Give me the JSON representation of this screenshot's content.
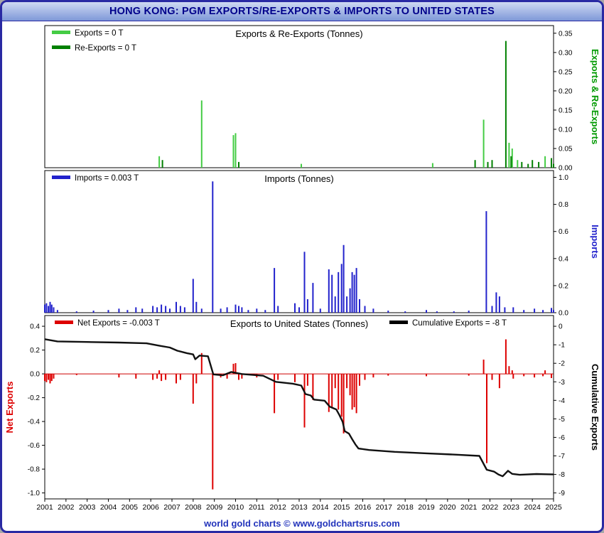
{
  "window": {
    "title": "HONG KONG: PGM EXPORTS/RE-EXPORTS & IMPORTS TO UNITED STATES"
  },
  "footer": {
    "text": "world gold charts © www.goldchartsrus.com"
  },
  "colors": {
    "window_border": "#2929a3",
    "title_text": "#00008b",
    "footer_text": "#2233bb",
    "exports": "#44cc44",
    "re_exports": "#008000",
    "imports": "#2222cc",
    "net_exports": "#dd0000",
    "cumulative": "#111111"
  },
  "x_axis": {
    "min": 2001,
    "max": 2025,
    "tick_labels": [
      "2001",
      "2002",
      "2003",
      "2004",
      "2005",
      "2006",
      "2007",
      "2008",
      "2009",
      "2010",
      "2011",
      "2012",
      "2013",
      "2014",
      "2015",
      "2016",
      "2017",
      "2018",
      "2019",
      "2020",
      "2021",
      "2022",
      "2023",
      "2024",
      "2025"
    ]
  },
  "chart_data": [
    {
      "id": "exports_reexports",
      "type": "bar",
      "title": "Exports & Re-Exports (Tonnes)",
      "axis_label": "Exports & Re-Exports",
      "axis_label_color": "#009900",
      "scale": {
        "min": 0,
        "max": 0.37
      },
      "ticks": [
        [
          0,
          "0.00"
        ],
        [
          0.05,
          "0.05"
        ],
        [
          0.1,
          "0.10"
        ],
        [
          0.15,
          "0.15"
        ],
        [
          0.2,
          "0.20"
        ],
        [
          0.25,
          "0.25"
        ],
        [
          0.3,
          "0.30"
        ],
        [
          0.35,
          "0.35"
        ]
      ],
      "legend": [
        {
          "label": "Exports = 0 T",
          "color": "#44cc44"
        },
        {
          "label": "Re-Exports = 0 T",
          "color": "#008000"
        }
      ],
      "series": [
        {
          "name": "Exports",
          "type": "bar",
          "color": "#44cc44",
          "points": [
            [
              2006.4,
              0.03
            ],
            [
              2008.4,
              0.175
            ],
            [
              2009.9,
              0.085
            ],
            [
              2010.0,
              0.09
            ],
            [
              2013.1,
              0.01
            ],
            [
              2019.3,
              0.012
            ],
            [
              2021.7,
              0.125
            ],
            [
              2022.9,
              0.065
            ],
            [
              2023.05,
              0.05
            ],
            [
              2023.3,
              0.02
            ],
            [
              2024.6,
              0.03
            ]
          ]
        },
        {
          "name": "Re-Exports",
          "type": "bar",
          "color": "#008000",
          "points": [
            [
              2006.55,
              0.02
            ],
            [
              2010.15,
              0.015
            ],
            [
              2021.3,
              0.02
            ],
            [
              2021.9,
              0.015
            ],
            [
              2022.1,
              0.02
            ],
            [
              2022.75,
              0.33
            ],
            [
              2023.0,
              0.03
            ],
            [
              2023.5,
              0.015
            ],
            [
              2023.8,
              0.01
            ],
            [
              2024.0,
              0.02
            ],
            [
              2024.3,
              0.015
            ],
            [
              2024.9,
              0.025
            ],
            [
              2025.0,
              0.01
            ]
          ]
        }
      ]
    },
    {
      "id": "imports",
      "type": "bar",
      "title": "Imports (Tonnes)",
      "axis_label": "Imports",
      "axis_label_color": "#2222cc",
      "scale": {
        "min": 0,
        "max": 1.05
      },
      "ticks": [
        [
          0,
          "0.0"
        ],
        [
          0.2,
          "0.2"
        ],
        [
          0.4,
          "0.4"
        ],
        [
          0.6,
          "0.6"
        ],
        [
          0.8,
          "0.8"
        ],
        [
          1.0,
          "1.0"
        ]
      ],
      "legend": [
        {
          "label": "Imports = 0.003 T",
          "color": "#2222cc"
        }
      ],
      "series": [
        {
          "name": "Imports",
          "type": "bar",
          "color": "#2222cc",
          "points": [
            [
              2001.0,
              0.06
            ],
            [
              2001.08,
              0.07
            ],
            [
              2001.17,
              0.05
            ],
            [
              2001.25,
              0.08
            ],
            [
              2001.33,
              0.06
            ],
            [
              2001.42,
              0.04
            ],
            [
              2001.6,
              0.02
            ],
            [
              2002.5,
              0.01
            ],
            [
              2003.3,
              0.015
            ],
            [
              2004.0,
              0.02
            ],
            [
              2004.5,
              0.03
            ],
            [
              2004.9,
              0.02
            ],
            [
              2005.3,
              0.04
            ],
            [
              2005.6,
              0.03
            ],
            [
              2006.1,
              0.05
            ],
            [
              2006.3,
              0.04
            ],
            [
              2006.5,
              0.06
            ],
            [
              2006.7,
              0.05
            ],
            [
              2006.9,
              0.03
            ],
            [
              2007.2,
              0.08
            ],
            [
              2007.4,
              0.05
            ],
            [
              2007.6,
              0.04
            ],
            [
              2008.0,
              0.25
            ],
            [
              2008.15,
              0.08
            ],
            [
              2008.4,
              0.03
            ],
            [
              2008.92,
              0.97
            ],
            [
              2009.3,
              0.03
            ],
            [
              2009.6,
              0.04
            ],
            [
              2010.0,
              0.06
            ],
            [
              2010.15,
              0.05
            ],
            [
              2010.3,
              0.04
            ],
            [
              2010.6,
              0.02
            ],
            [
              2011.0,
              0.03
            ],
            [
              2011.4,
              0.02
            ],
            [
              2011.83,
              0.33
            ],
            [
              2012.0,
              0.05
            ],
            [
              2012.8,
              0.07
            ],
            [
              2013.0,
              0.04
            ],
            [
              2013.25,
              0.45
            ],
            [
              2013.4,
              0.1
            ],
            [
              2013.65,
              0.22
            ],
            [
              2014.0,
              0.03
            ],
            [
              2014.4,
              0.32
            ],
            [
              2014.55,
              0.28
            ],
            [
              2014.7,
              0.12
            ],
            [
              2014.85,
              0.3
            ],
            [
              2015.0,
              0.36
            ],
            [
              2015.1,
              0.5
            ],
            [
              2015.25,
              0.12
            ],
            [
              2015.4,
              0.18
            ],
            [
              2015.5,
              0.3
            ],
            [
              2015.6,
              0.28
            ],
            [
              2015.7,
              0.33
            ],
            [
              2015.85,
              0.1
            ],
            [
              2016.1,
              0.05
            ],
            [
              2016.5,
              0.03
            ],
            [
              2017.2,
              0.015
            ],
            [
              2018.0,
              0.01
            ],
            [
              2019.0,
              0.02
            ],
            [
              2019.5,
              0.01
            ],
            [
              2020.3,
              0.01
            ],
            [
              2021.0,
              0.015
            ],
            [
              2021.83,
              0.75
            ],
            [
              2022.1,
              0.05
            ],
            [
              2022.3,
              0.15
            ],
            [
              2022.45,
              0.12
            ],
            [
              2022.7,
              0.04
            ],
            [
              2023.1,
              0.04
            ],
            [
              2023.6,
              0.02
            ],
            [
              2024.1,
              0.03
            ],
            [
              2024.5,
              0.02
            ],
            [
              2024.9,
              0.035
            ],
            [
              2025.0,
              0.02
            ]
          ]
        }
      ]
    },
    {
      "id": "net_exports",
      "type": "bar+line",
      "title": "Exports to United States (Tonnes)",
      "scale": {
        "min": -1.05,
        "max": 0.49
      },
      "zero_line_color": "#cc0000",
      "left_axis": {
        "label": "Net Exports",
        "color": "#dd0000",
        "ticks": [
          [
            0.4,
            "0.4"
          ],
          [
            0.2,
            "0.2"
          ],
          [
            0,
            "0.0"
          ],
          [
            -0.2,
            "-0.2"
          ],
          [
            -0.4,
            "-0.4"
          ],
          [
            -0.6,
            "-0.6"
          ],
          [
            -0.8,
            "-0.8"
          ],
          [
            -1.0,
            "-1.0"
          ]
        ]
      },
      "right_axis": {
        "label": "Cumulative Exports",
        "color": "#000000",
        "map_left_ref": [
          0.4,
          -1.0
        ],
        "map_right_ref": [
          0,
          -9
        ],
        "ticks": [
          [
            0,
            "0"
          ],
          [
            -1,
            "-1"
          ],
          [
            -2,
            "-2"
          ],
          [
            -3,
            "-3"
          ],
          [
            -4,
            "-4"
          ],
          [
            -5,
            "-5"
          ],
          [
            -6,
            "-6"
          ],
          [
            -7,
            "-7"
          ],
          [
            -8,
            "-8"
          ],
          [
            -9,
            "-9"
          ]
        ]
      },
      "legend": [
        {
          "label": "Net Exports = -0.003 T",
          "color": "#dd0000"
        },
        {
          "label": "Cumulative Exports = -8 T",
          "color": "#000000"
        }
      ],
      "series": [
        {
          "name": "Net Exports",
          "type": "bar",
          "color": "#dd0000",
          "points": [
            [
              2001.0,
              -0.06
            ],
            [
              2001.08,
              -0.07
            ],
            [
              2001.17,
              -0.05
            ],
            [
              2001.25,
              -0.08
            ],
            [
              2001.33,
              -0.06
            ],
            [
              2001.42,
              -0.04
            ],
            [
              2002.5,
              -0.01
            ],
            [
              2004.5,
              -0.03
            ],
            [
              2005.3,
              -0.04
            ],
            [
              2006.1,
              -0.05
            ],
            [
              2006.3,
              -0.04
            ],
            [
              2006.4,
              0.03
            ],
            [
              2006.5,
              -0.06
            ],
            [
              2006.7,
              -0.05
            ],
            [
              2007.2,
              -0.08
            ],
            [
              2007.4,
              -0.05
            ],
            [
              2008.0,
              -0.25
            ],
            [
              2008.15,
              -0.08
            ],
            [
              2008.4,
              0.175
            ],
            [
              2008.92,
              -0.97
            ],
            [
              2009.3,
              -0.03
            ],
            [
              2009.6,
              -0.04
            ],
            [
              2009.9,
              0.085
            ],
            [
              2010.0,
              0.09
            ],
            [
              2010.15,
              -0.05
            ],
            [
              2010.3,
              -0.04
            ],
            [
              2011.0,
              -0.03
            ],
            [
              2011.83,
              -0.33
            ],
            [
              2012.0,
              -0.05
            ],
            [
              2012.8,
              -0.07
            ],
            [
              2013.25,
              -0.45
            ],
            [
              2013.4,
              -0.1
            ],
            [
              2013.65,
              -0.22
            ],
            [
              2014.4,
              -0.32
            ],
            [
              2014.55,
              -0.28
            ],
            [
              2014.7,
              -0.12
            ],
            [
              2014.85,
              -0.3
            ],
            [
              2015.0,
              -0.36
            ],
            [
              2015.1,
              -0.5
            ],
            [
              2015.25,
              -0.12
            ],
            [
              2015.4,
              -0.18
            ],
            [
              2015.5,
              -0.3
            ],
            [
              2015.6,
              -0.28
            ],
            [
              2015.7,
              -0.33
            ],
            [
              2015.85,
              -0.1
            ],
            [
              2016.1,
              -0.05
            ],
            [
              2016.5,
              -0.03
            ],
            [
              2017.2,
              -0.015
            ],
            [
              2019.0,
              -0.02
            ],
            [
              2021.0,
              -0.015
            ],
            [
              2021.7,
              0.12
            ],
            [
              2021.85,
              -0.75
            ],
            [
              2022.1,
              -0.05
            ],
            [
              2022.45,
              -0.12
            ],
            [
              2022.75,
              0.29
            ],
            [
              2022.9,
              0.065
            ],
            [
              2023.05,
              0.03
            ],
            [
              2023.1,
              -0.04
            ],
            [
              2023.6,
              -0.02
            ],
            [
              2024.1,
              -0.03
            ],
            [
              2024.5,
              -0.02
            ],
            [
              2024.6,
              0.03
            ],
            [
              2024.9,
              -0.035
            ]
          ]
        },
        {
          "name": "Cumulative Exports",
          "type": "line",
          "color": "#111111",
          "axis": "right",
          "points": [
            [
              2001.0,
              -0.7
            ],
            [
              2001.6,
              -0.82
            ],
            [
              2003.0,
              -0.85
            ],
            [
              2004.5,
              -0.88
            ],
            [
              2005.8,
              -0.92
            ],
            [
              2006.4,
              -1.05
            ],
            [
              2006.9,
              -1.15
            ],
            [
              2007.25,
              -1.32
            ],
            [
              2007.7,
              -1.45
            ],
            [
              2008.0,
              -1.52
            ],
            [
              2008.1,
              -1.78
            ],
            [
              2008.3,
              -1.58
            ],
            [
              2008.7,
              -1.62
            ],
            [
              2008.95,
              -2.6
            ],
            [
              2009.4,
              -2.65
            ],
            [
              2009.8,
              -2.47
            ],
            [
              2010.3,
              -2.58
            ],
            [
              2011.3,
              -2.67
            ],
            [
              2011.9,
              -3.0
            ],
            [
              2012.7,
              -3.1
            ],
            [
              2013.1,
              -3.2
            ],
            [
              2013.3,
              -3.66
            ],
            [
              2013.55,
              -3.74
            ],
            [
              2013.7,
              -3.96
            ],
            [
              2014.2,
              -4.02
            ],
            [
              2014.45,
              -4.35
            ],
            [
              2014.75,
              -4.49
            ],
            [
              2014.9,
              -4.8
            ],
            [
              2015.05,
              -5.16
            ],
            [
              2015.15,
              -5.66
            ],
            [
              2015.35,
              -5.8
            ],
            [
              2015.5,
              -6.1
            ],
            [
              2015.65,
              -6.38
            ],
            [
              2015.8,
              -6.6
            ],
            [
              2016.3,
              -6.68
            ],
            [
              2017.5,
              -6.78
            ],
            [
              2019.0,
              -6.86
            ],
            [
              2020.5,
              -6.94
            ],
            [
              2021.5,
              -7.0
            ],
            [
              2021.85,
              -7.75
            ],
            [
              2022.2,
              -7.85
            ],
            [
              2022.4,
              -8.0
            ],
            [
              2022.6,
              -8.1
            ],
            [
              2022.85,
              -7.8
            ],
            [
              2023.05,
              -7.97
            ],
            [
              2023.4,
              -8.02
            ],
            [
              2024.2,
              -7.98
            ],
            [
              2025.0,
              -8.0
            ]
          ]
        }
      ]
    }
  ]
}
